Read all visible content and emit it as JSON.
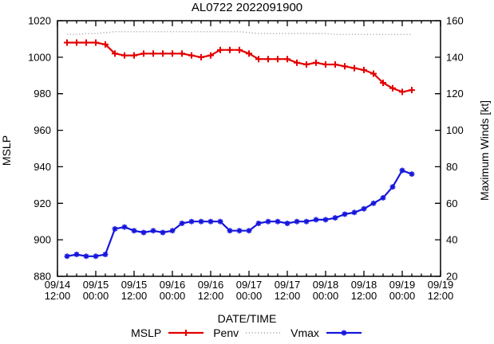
{
  "title": "AL0722 2022091900",
  "axes": {
    "left_label": "MSLP",
    "right_label": "Maximum Winds [kt]",
    "x_label": "DATE/TIME"
  },
  "colors": {
    "mslp": "#e30000",
    "penv": "#9a9a9a",
    "vmax": "#1616dd",
    "axis": "#000000"
  },
  "legend": [
    {
      "label": "MSLP",
      "series": "mslp",
      "style": "solid-plus"
    },
    {
      "label": "Penv",
      "series": "penv",
      "style": "dotted"
    },
    {
      "label": "Vmax",
      "series": "vmax",
      "style": "solid-asterisk"
    }
  ],
  "chart_data": {
    "type": "line",
    "title": "AL0722 2022091900",
    "xlabel": "DATE/TIME",
    "x": [
      "09/14 15:00",
      "09/14 18:00",
      "09/14 21:00",
      "09/15 00:00",
      "09/15 03:00",
      "09/15 06:00",
      "09/15 09:00",
      "09/15 12:00",
      "09/15 15:00",
      "09/15 18:00",
      "09/15 21:00",
      "09/16 00:00",
      "09/16 03:00",
      "09/16 06:00",
      "09/16 09:00",
      "09/16 12:00",
      "09/16 15:00",
      "09/16 18:00",
      "09/16 21:00",
      "09/17 00:00",
      "09/17 03:00",
      "09/17 06:00",
      "09/17 09:00",
      "09/17 12:00",
      "09/17 15:00",
      "09/17 18:00",
      "09/17 21:00",
      "09/18 00:00",
      "09/18 03:00",
      "09/18 06:00",
      "09/18 09:00",
      "09/18 12:00",
      "09/18 15:00",
      "09/18 18:00",
      "09/18 21:00",
      "09/19 00:00",
      "09/19 03:00"
    ],
    "series": [
      {
        "name": "MSLP",
        "axis": "left",
        "marker": "plus",
        "line": "solid",
        "values": [
          1008,
          1008,
          1008,
          1008,
          1007,
          1002,
          1001,
          1001,
          1002,
          1002,
          1002,
          1002,
          1002,
          1001,
          1000,
          1001,
          1004,
          1004,
          1004,
          1002,
          999,
          999,
          999,
          999,
          997,
          996,
          997,
          996,
          996,
          995,
          994,
          993,
          991,
          986,
          983,
          981,
          982
        ]
      },
      {
        "name": "Penv",
        "axis": "left",
        "marker": "none",
        "line": "dotted",
        "values": [
          1012.5,
          1012.5,
          1013,
          1013,
          1013.5,
          1014,
          1014,
          1014,
          1014,
          1014,
          1014,
          1014,
          1014,
          1014,
          1014,
          1014,
          1014,
          1014,
          1014,
          1013.5,
          1013,
          1013,
          1013,
          1013,
          1013,
          1013,
          1013,
          1013,
          1012.5,
          1012.5,
          1012.5,
          1012.5,
          1012.5,
          1012.5,
          1012.5,
          1012.5,
          1012.5
        ]
      },
      {
        "name": "Vmax",
        "axis": "right",
        "marker": "asterisk",
        "line": "solid",
        "values": [
          31,
          32,
          31,
          31,
          32,
          46,
          47,
          45,
          44,
          45,
          44,
          45,
          49,
          50,
          50,
          50,
          50,
          45,
          45,
          45,
          49,
          50,
          50,
          49,
          50,
          50,
          51,
          51,
          52,
          54,
          55,
          57,
          60,
          63,
          69,
          78,
          76
        ]
      }
    ],
    "left_axis": {
      "label": "MSLP",
      "min": 880,
      "max": 1020,
      "ticks": [
        1020,
        1000,
        980,
        960,
        940,
        920,
        900,
        880
      ]
    },
    "right_axis": {
      "label": "Maximum Winds [kt]",
      "min": 20,
      "max": 160,
      "ticks": [
        160,
        140,
        120,
        100,
        80,
        60,
        40,
        20
      ]
    },
    "x_axis": {
      "label": "DATE/TIME",
      "start": "09/14 12:00",
      "end": "09/19 12:00",
      "major_tick_hours": 12,
      "minor_tick_hours": 3,
      "tick_labels": [
        "09/14 12:00",
        "09/15 00:00",
        "09/15 12:00",
        "09/16 00:00",
        "09/16 12:00",
        "09/17 00:00",
        "09/17 12:00",
        "09/18 00:00",
        "09/18 12:00",
        "09/19 00:00",
        "09/19 12:00"
      ]
    }
  }
}
